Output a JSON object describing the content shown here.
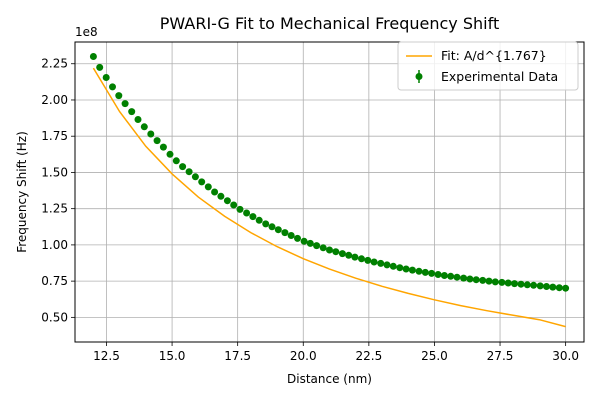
{
  "chart_data": {
    "type": "scatter",
    "title": "PWARI-G Fit to Mechanical Frequency Shift",
    "xlabel": "Distance (nm)",
    "ylabel": "Frequency Shift (Hz)",
    "y_offset_label": "1e8",
    "xlim": [
      11.3,
      30.7
    ],
    "ylim": [
      33000000,
      240000000
    ],
    "y_scale_factor": 100000000,
    "xticks": [
      12.5,
      15.0,
      17.5,
      20.0,
      22.5,
      25.0,
      27.5,
      30.0
    ],
    "xtick_labels": [
      "12.5",
      "15.0",
      "17.5",
      "20.0",
      "22.5",
      "25.0",
      "27.5",
      "30.0"
    ],
    "yticks": [
      0.5,
      0.75,
      1.0,
      1.25,
      1.5,
      1.75,
      2.0,
      2.25
    ],
    "ytick_labels": [
      "0.50",
      "0.75",
      "1.00",
      "1.25",
      "1.50",
      "1.75",
      "2.00",
      "2.25"
    ],
    "grid": true,
    "legend_position": "top-right",
    "colors": {
      "data": "#008000",
      "fit": "#ffa500",
      "grid": "#b0b0b0"
    },
    "series": [
      {
        "name": "Experimental Data",
        "kind": "scatter_errorbar",
        "x": [
          12.0,
          12.24,
          12.49,
          12.73,
          12.97,
          13.21,
          13.46,
          13.7,
          13.94,
          14.19,
          14.43,
          14.67,
          14.92,
          15.16,
          15.4,
          15.65,
          15.89,
          16.13,
          16.38,
          16.62,
          16.86,
          17.11,
          17.35,
          17.59,
          17.84,
          18.08,
          18.32,
          18.57,
          18.81,
          19.05,
          19.3,
          19.54,
          19.78,
          20.03,
          20.27,
          20.51,
          20.76,
          21.0,
          21.24,
          21.49,
          21.73,
          21.97,
          22.22,
          22.46,
          22.7,
          22.95,
          23.19,
          23.43,
          23.68,
          23.92,
          24.16,
          24.41,
          24.65,
          24.89,
          25.14,
          25.38,
          25.62,
          25.86,
          26.11,
          26.35,
          26.59,
          26.84,
          27.08,
          27.32,
          27.57,
          27.81,
          28.05,
          28.3,
          28.54,
          28.78,
          29.03,
          29.27,
          29.51,
          29.76,
          30.0
        ],
        "y": [
          230000000,
          222500000,
          215500000,
          209000000,
          203000000,
          197500000,
          192000000,
          186500000,
          181500000,
          176500000,
          172000000,
          167500000,
          162500000,
          158000000,
          154000000,
          150500000,
          147000000,
          143500000,
          140000000,
          136500000,
          133500000,
          130500000,
          127500000,
          124500000,
          122000000,
          119500000,
          117000000,
          114500000,
          112500000,
          110500000,
          108500000,
          106500000,
          104500000,
          102500000,
          101000000,
          99500000,
          98000000,
          96500000,
          95300000,
          94000000,
          92800000,
          91600000,
          90400000,
          89300000,
          88200000,
          87200000,
          86200000,
          85200000,
          84300000,
          83400000,
          82600000,
          81800000,
          81000000,
          80300000,
          79600000,
          78900000,
          78300000,
          77700000,
          77100000,
          76500000,
          76000000,
          75500000,
          75000000,
          74500000,
          74100000,
          73700000,
          73300000,
          72900000,
          72500000,
          72100000,
          71700000,
          71300000,
          70900000,
          70500000,
          70100000
        ]
      },
      {
        "name": "Fit: A/d^{1.767}",
        "kind": "line",
        "x": [
          12.0,
          13.0,
          14.0,
          15.0,
          16.0,
          17.0,
          18.0,
          19.0,
          20.0,
          21.0,
          22.0,
          23.0,
          24.0,
          25.0,
          26.0,
          27.0,
          28.0,
          29.0,
          30.0
        ],
        "y": [
          222000000,
          192000000,
          168000000,
          149000000,
          133000000,
          119800000,
          108500000,
          98800000,
          90500000,
          83300000,
          77000000,
          71400000,
          66500000,
          62100000,
          58100000,
          54600000,
          51400000,
          48400000,
          43600000
        ]
      }
    ]
  }
}
